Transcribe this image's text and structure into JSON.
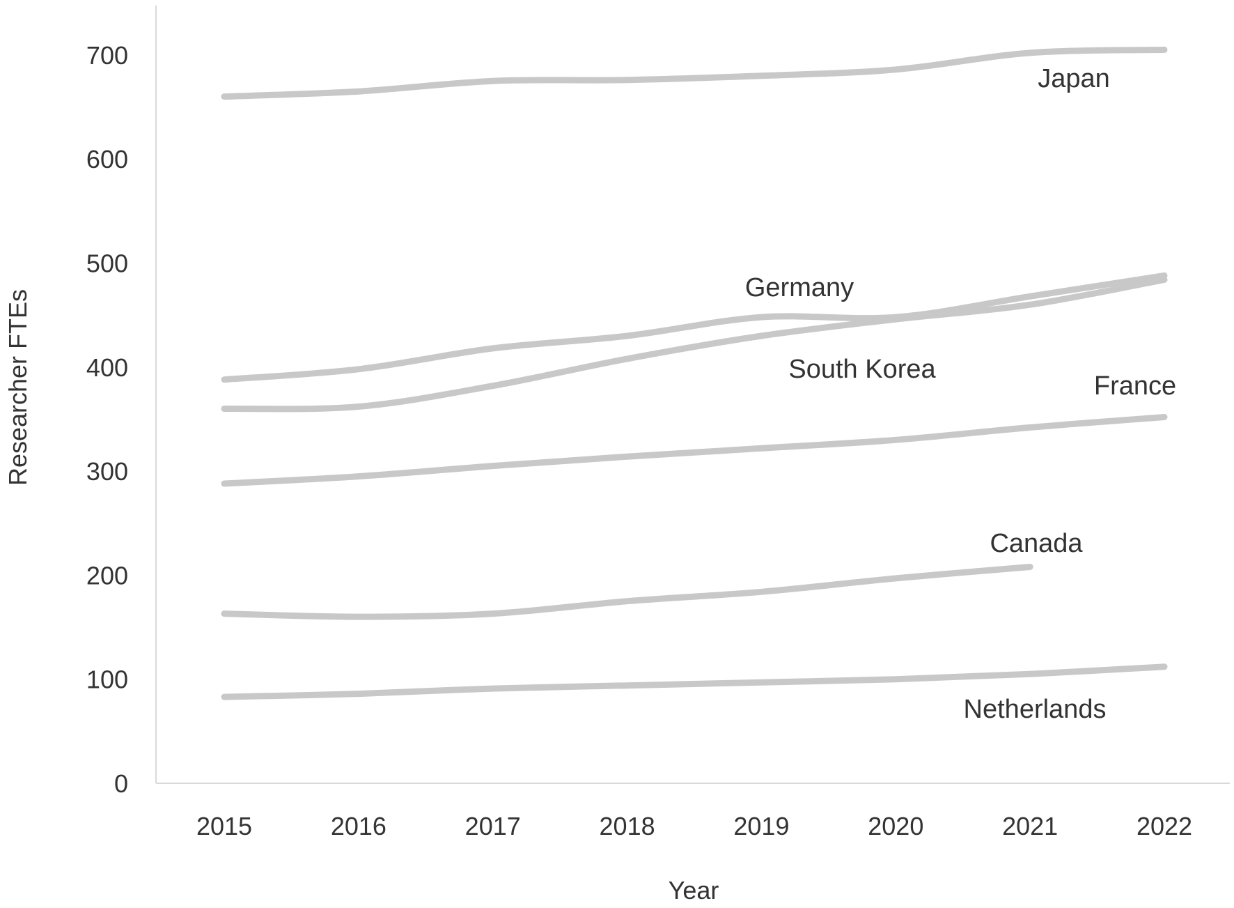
{
  "chart_data": {
    "type": "line",
    "title": "",
    "xlabel": "Year",
    "ylabel": "Researcher FTEs",
    "x": [
      2015,
      2016,
      2017,
      2018,
      2019,
      2020,
      2021,
      2022
    ],
    "ylim": [
      0,
      700
    ],
    "yticks": [
      0,
      100,
      200,
      300,
      400,
      500,
      600,
      700
    ],
    "grid": false,
    "legend": "none (direct labels)",
    "line_color": "#c8c8c8",
    "series": [
      {
        "name": "Japan",
        "values": [
          660,
          665,
          675,
          676,
          680,
          686,
          702,
          705
        ]
      },
      {
        "name": "Germany",
        "values": [
          388,
          398,
          418,
          430,
          448,
          448,
          468,
          488
        ]
      },
      {
        "name": "South Korea",
        "values": [
          360,
          362,
          382,
          408,
          430,
          446,
          460,
          484
        ]
      },
      {
        "name": "France",
        "values": [
          288,
          295,
          305,
          314,
          322,
          330,
          342,
          352
        ]
      },
      {
        "name": "Canada",
        "values": [
          163,
          160,
          163,
          175,
          184,
          197,
          208,
          null
        ]
      },
      {
        "name": "Netherlands",
        "values": [
          83,
          86,
          91,
          94,
          97,
          100,
          105,
          112
        ]
      }
    ]
  }
}
